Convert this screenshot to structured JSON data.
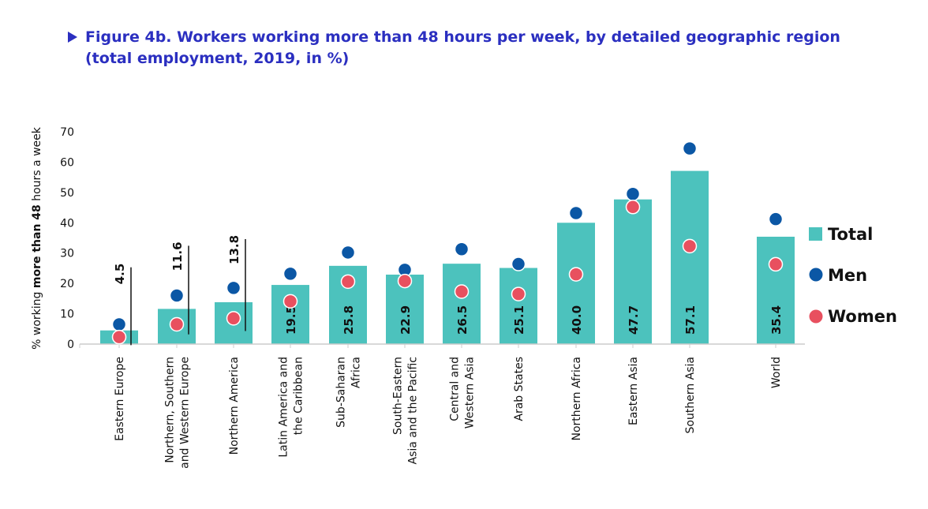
{
  "title_line1": "Figure 4b. Workers working more than 48 hours per week, by detailed geographic region",
  "title_line2": "(total employment, 2019, in %)",
  "colors": {
    "title": "#2b2fc0",
    "total": "#4cc2bd",
    "men": "#0b57a5",
    "women": "#e8505f",
    "axis": "#555555"
  },
  "chart_data": {
    "type": "bar",
    "title": "Figure 4b. Workers working more than 48 hours per week, by detailed geographic region (total employment, 2019, in %)",
    "ylabel_parts": [
      "% working ",
      "more than 48",
      " hours a week"
    ],
    "ylim": [
      0,
      70
    ],
    "yticks": [
      0,
      10,
      20,
      30,
      40,
      50,
      60,
      70
    ],
    "categories": [
      [
        "Eastern Europe"
      ],
      [
        "Northern, Southern",
        "and Western Europe"
      ],
      [
        "Northern America"
      ],
      [
        "Latin America and",
        "the Caribbean"
      ],
      [
        "Sub-Saharan",
        "Africa"
      ],
      [
        "South-Eastern",
        "Asia and the Pacific"
      ],
      [
        "Central and",
        "Western Asia"
      ],
      [
        "Arab States"
      ],
      [
        "Northern Africa"
      ],
      [
        "Eastern Asia"
      ],
      [
        "Southern Asia"
      ],
      [
        "World"
      ]
    ],
    "series": [
      {
        "name": "Total",
        "kind": "bar",
        "values": [
          4.5,
          11.6,
          13.8,
          19.5,
          25.8,
          22.9,
          26.5,
          25.1,
          40.0,
          47.7,
          57.1,
          35.4
        ],
        "labels": [
          "4.5",
          "11.6",
          "13.8",
          "19.5",
          "25.8",
          "22.9",
          "26.5",
          "25.1",
          "40.0",
          "47.7",
          "57.1",
          "35.4"
        ]
      },
      {
        "name": "Men",
        "kind": "dot",
        "values": [
          6.5,
          16.0,
          18.5,
          23.2,
          30.2,
          24.5,
          31.3,
          26.4,
          43.2,
          49.5,
          64.5,
          41.2
        ]
      },
      {
        "name": "Women",
        "kind": "dot",
        "values": [
          2.3,
          6.5,
          8.5,
          14.1,
          20.6,
          20.8,
          17.3,
          16.5,
          23.0,
          45.2,
          32.3,
          26.3
        ]
      }
    ],
    "legend": [
      "Total",
      "Men",
      "Women"
    ],
    "legend_position": "right"
  }
}
